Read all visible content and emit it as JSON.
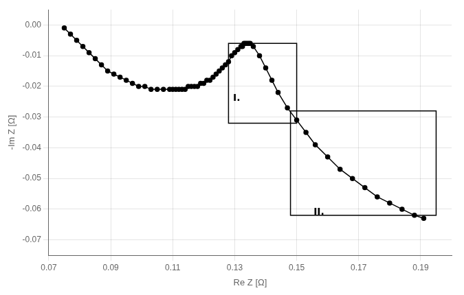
{
  "chart_data": {
    "type": "line",
    "xlabel": "Re Z [Ω]",
    "ylabel": "-Im Z [Ω]",
    "x": [
      0.075,
      0.077,
      0.079,
      0.081,
      0.083,
      0.085,
      0.087,
      0.089,
      0.091,
      0.093,
      0.095,
      0.097,
      0.099,
      0.101,
      0.103,
      0.105,
      0.107,
      0.109,
      0.11,
      0.111,
      0.112,
      0.113,
      0.114,
      0.115,
      0.116,
      0.117,
      0.118,
      0.119,
      0.12,
      0.121,
      0.122,
      0.123,
      0.124,
      0.125,
      0.126,
      0.127,
      0.128,
      0.129,
      0.13,
      0.131,
      0.132,
      0.1325,
      0.133,
      0.1335,
      0.134,
      0.1345,
      0.135,
      0.136,
      0.138,
      0.14,
      0.142,
      0.144,
      0.147,
      0.15,
      0.153,
      0.156,
      0.16,
      0.164,
      0.168,
      0.172,
      0.176,
      0.18,
      0.184,
      0.188,
      0.191
    ],
    "series": [
      {
        "color": "#000000",
        "marker": "circle",
        "values": [
          -0.001,
          -0.003,
          -0.005,
          -0.007,
          -0.009,
          -0.011,
          -0.013,
          -0.015,
          -0.016,
          -0.017,
          -0.018,
          -0.019,
          -0.02,
          -0.02,
          -0.021,
          -0.021,
          -0.021,
          -0.021,
          -0.021,
          -0.021,
          -0.021,
          -0.021,
          -0.021,
          -0.02,
          -0.02,
          -0.02,
          -0.02,
          -0.019,
          -0.019,
          -0.018,
          -0.018,
          -0.017,
          -0.016,
          -0.015,
          -0.014,
          -0.013,
          -0.012,
          -0.01,
          -0.009,
          -0.008,
          -0.007,
          -0.007,
          -0.006,
          -0.006,
          -0.006,
          -0.006,
          -0.006,
          -0.007,
          -0.01,
          -0.014,
          -0.018,
          -0.022,
          -0.027,
          -0.031,
          -0.035,
          -0.039,
          -0.043,
          -0.047,
          -0.05,
          -0.053,
          -0.056,
          -0.058,
          -0.06,
          -0.062,
          -0.063
        ]
      }
    ],
    "xlim": [
      0.07,
      0.2
    ],
    "ylim": [
      -0.075,
      0.005
    ],
    "xticks": [
      0.07,
      0.09,
      0.11,
      0.13,
      0.15,
      0.17,
      0.19
    ],
    "yticks": [
      {
        "value": 0.0,
        "label": "0.00"
      },
      -0.01,
      -0.02,
      -0.03,
      -0.04,
      -0.05,
      -0.06,
      -0.07
    ],
    "grid": true,
    "rects": [
      {
        "x0": 0.128,
        "x1": 0.15,
        "y0": -0.032,
        "y1": -0.006,
        "color": "#000000"
      },
      {
        "x0": 0.148,
        "x1": 0.195,
        "y0": -0.062,
        "y1": -0.028,
        "color": "#000000"
      }
    ],
    "annotations": [
      {
        "text": "I.",
        "x": 0.129,
        "y": -0.026,
        "color": "#000000"
      },
      {
        "text": "II.",
        "x": 0.155,
        "y": -0.059,
        "color": "#000000"
      }
    ]
  }
}
